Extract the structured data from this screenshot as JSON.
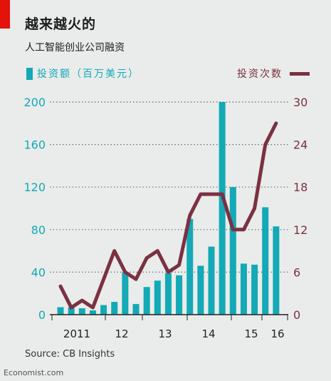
{
  "header": {
    "title": "越来越火的",
    "subtitle": "人工智能创业公司融资"
  },
  "legend": {
    "bars_label": "投资额（百万美元）",
    "line_label": "投资次数"
  },
  "colors": {
    "bars": "#13a9b6",
    "line": "#7b3142",
    "accent": "#e3120b"
  },
  "source": "Source: CB Insights",
  "footer": "Economist.com",
  "chart_data": {
    "type": "bar",
    "title": "越来越火的",
    "subtitle": "人工智能创业公司融资",
    "x_ticks": [
      "2011",
      "12",
      "13",
      "14",
      "15",
      "16"
    ],
    "left_axis": {
      "label": "投资额（百万美元）",
      "ticks": [
        0,
        40,
        80,
        120,
        160,
        200
      ],
      "ylim": [
        0,
        200
      ]
    },
    "right_axis": {
      "label": "投资次数",
      "ticks": [
        0,
        6,
        12,
        18,
        24,
        30
      ],
      "ylim": [
        0,
        30
      ]
    },
    "categories": [
      "2011Q1",
      "2011Q2",
      "2011Q3",
      "2011Q4",
      "2012Q1",
      "2012Q2",
      "2012Q3",
      "2012Q4",
      "2013Q1",
      "2013Q2",
      "2013Q3",
      "2013Q4",
      "2014Q1",
      "2014Q2",
      "2014Q3",
      "2014Q4",
      "2015Q1",
      "2015Q2",
      "2015Q3",
      "2015Q4",
      "2016Q1",
      "2016Q2"
    ],
    "series": [
      {
        "name": "投资额（百万美元）",
        "type": "bar",
        "axis": "left",
        "values": [
          7,
          7,
          6,
          4,
          9,
          12,
          40,
          10,
          26,
          32,
          39,
          37,
          90,
          46,
          64,
          200,
          120,
          48,
          47,
          101,
          83,
          null
        ]
      },
      {
        "name": "投资次数",
        "type": "line",
        "axis": "right",
        "values": [
          4,
          1,
          2,
          1,
          5,
          9,
          6,
          5,
          8,
          9,
          6,
          7,
          14,
          17,
          17,
          17,
          12,
          12,
          15,
          24,
          27,
          null
        ]
      }
    ],
    "grid": true,
    "legend_position": "top"
  }
}
